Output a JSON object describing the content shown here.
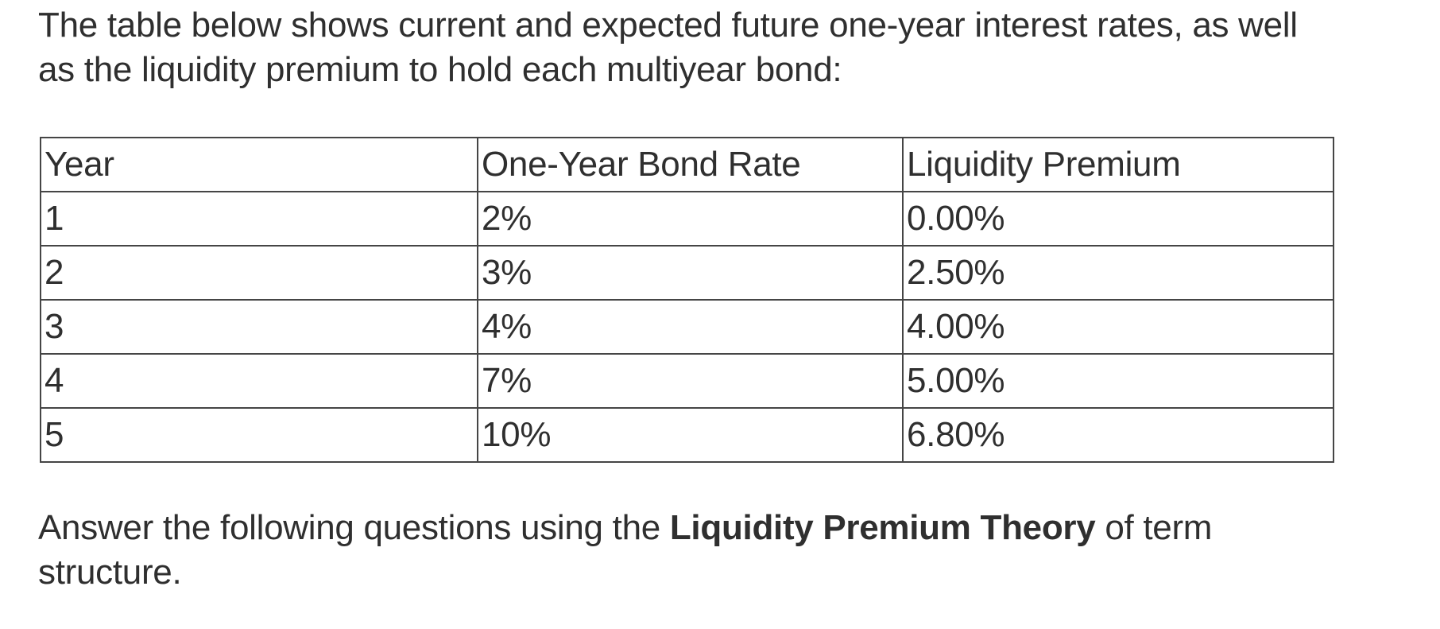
{
  "intro": {
    "line1": "The table below shows current and expected future one-year interest rates, as well",
    "line2": "as the liquidity premium to hold each multiyear bond:"
  },
  "table": {
    "headers": [
      "Year",
      "One-Year Bond Rate",
      "Liquidity Premium"
    ],
    "rows": [
      [
        "1",
        "2%",
        "0.00%"
      ],
      [
        "2",
        "3%",
        "2.50%"
      ],
      [
        "3",
        "4%",
        "4.00%"
      ],
      [
        "4",
        "7%",
        "5.00%"
      ],
      [
        "5",
        "10%",
        "6.80%"
      ]
    ]
  },
  "outro": {
    "before_bold": "Answer the following questions using the ",
    "bold": "Liquidity Premium Theory",
    "after_bold": " of term",
    "line2": "structure."
  },
  "colors": {
    "text": "#2f2f2f",
    "border": "#454545",
    "background": "#ffffff"
  }
}
